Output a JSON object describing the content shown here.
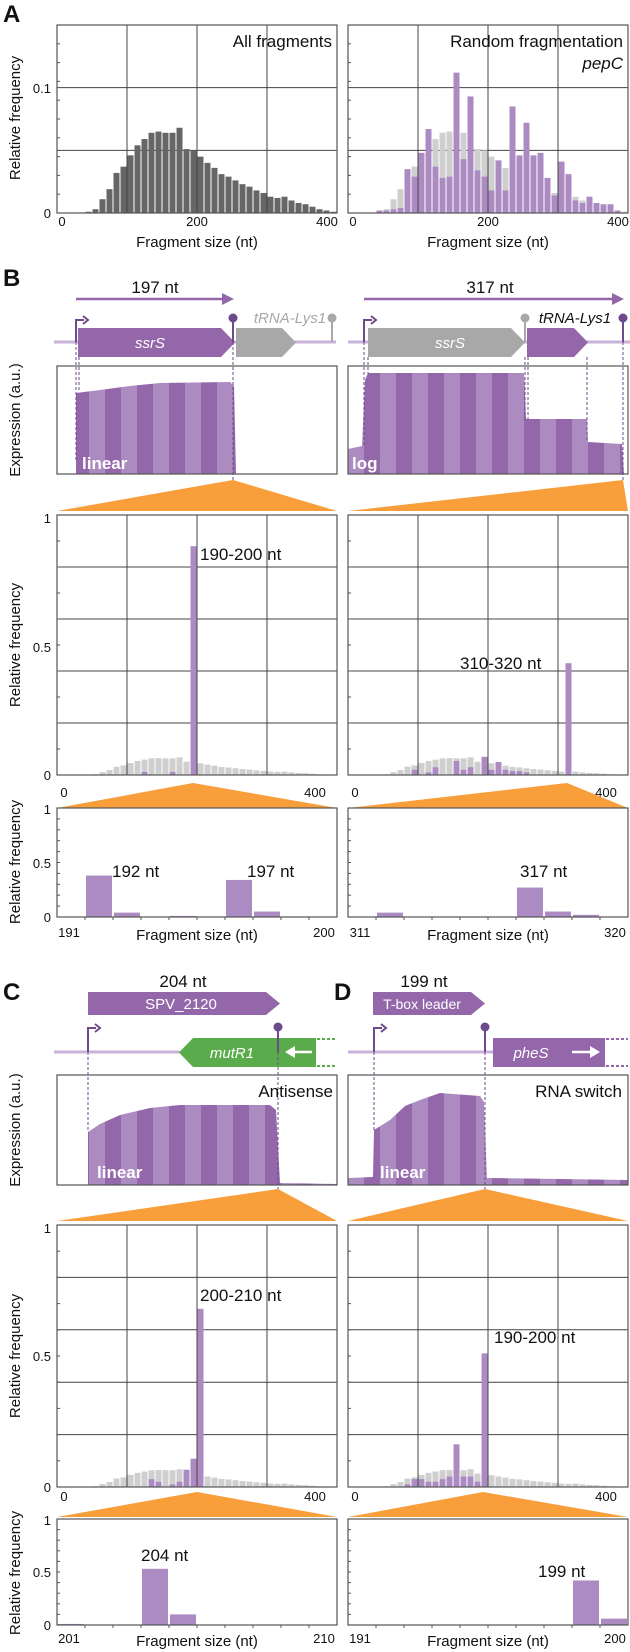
{
  "colors": {
    "purple": "#9467aa",
    "purple_light": "#ac8cc0",
    "bar_purple": "#ab8bc1",
    "gray_bar": "#cfcfcf",
    "dark_bar": "#666666",
    "orange": "#f89e3a",
    "gene_gray": "#a8a8a8",
    "green": "#5aab4b",
    "track": "#c9b2d9"
  },
  "panel_labels": {
    "A": "A",
    "B": "B",
    "C": "C",
    "D": "D"
  },
  "axis_text": {
    "relative_frequency": "Relative frequency",
    "expression": "Expression (a.u.)",
    "fragment_size": "Fragment size (nt)"
  },
  "genes": {
    "B_left": {
      "length": "197 nt",
      "gene1": "ssrS",
      "gene2": "tRNA-Lys1",
      "scale": "linear"
    },
    "B_right": {
      "length": "317 nt",
      "gene1": "ssrS",
      "gene2": "tRNA-Lys1",
      "scale": "log"
    },
    "C": {
      "length": "204 nt",
      "transcript": "SPV_2120",
      "antisense_gene": "mutR1",
      "title": "Antisense",
      "scale": "linear"
    },
    "D": {
      "length": "199 nt",
      "transcript": "T-box leader",
      "downstream_gene": "pheS",
      "title": "RNA switch",
      "scale": "linear"
    }
  },
  "chart_data": [
    {
      "id": "A_left",
      "type": "bar",
      "title": "All fragments",
      "xlabel": "Fragment size (nt)",
      "ylabel": "Relative frequency",
      "xlim": [
        0,
        400
      ],
      "ylim": [
        0,
        0.15
      ],
      "xticks": [
        "0",
        "200",
        "400"
      ],
      "yticks": [
        "0",
        "0.1"
      ],
      "bin_width": 10,
      "grid": true,
      "series": [
        {
          "name": "All fragments",
          "bin_starts_from": 0,
          "values": [
            0,
            0,
            0,
            0,
            0.001,
            0.003,
            0.011,
            0.019,
            0.032,
            0.037,
            0.046,
            0.054,
            0.059,
            0.064,
            0.065,
            0.064,
            0.064,
            0.068,
            0.051,
            0.05,
            0.045,
            0.04,
            0.036,
            0.031,
            0.029,
            0.026,
            0.023,
            0.021,
            0.018,
            0.016,
            0.013,
            0.012,
            0.013,
            0.01,
            0.008,
            0.007,
            0.005,
            0.003,
            0.002,
            0.001
          ]
        }
      ]
    },
    {
      "id": "A_right",
      "type": "bar",
      "title": "Random fragmentation",
      "subtitle": "pepC",
      "xlabel": "Fragment size (nt)",
      "xlim": [
        0,
        400
      ],
      "ylim": [
        0,
        0.15
      ],
      "xticks": [
        "0",
        "200",
        "400"
      ],
      "bin_width": 10,
      "grid": true,
      "series": [
        {
          "name": "pepC",
          "bin_starts_from": 40,
          "values": [
            0.002,
            0.002,
            0.003,
            0.004,
            0.035,
            0.029,
            0.048,
            0.067,
            0.037,
            0.028,
            0.029,
            0.112,
            0.043,
            0.093,
            0.034,
            0.029,
            0.018,
            0.042,
            0.018,
            0.085,
            0.046,
            0.072,
            0.046,
            0.048,
            0.028,
            0.014,
            0.041,
            0.031,
            0.01,
            0.008,
            0.013,
            0.008,
            0.007,
            0.007,
            0.002,
            0
          ]
        }
      ]
    },
    {
      "id": "B_left_main",
      "type": "bar",
      "xlim": [
        0,
        400
      ],
      "ylim": [
        0,
        1
      ],
      "xticks": [
        "0",
        "400"
      ],
      "yticks": [
        "0",
        "0.5",
        "1"
      ],
      "ylabel": "Relative frequency",
      "annotation": "190-200 nt",
      "series": [
        {
          "name": "ssrS",
          "bins": [
            [
              120,
              0.012
            ],
            [
              160,
              0.012
            ],
            [
              190,
              0.88
            ]
          ]
        }
      ]
    },
    {
      "id": "B_right_main",
      "type": "bar",
      "xlim": [
        0,
        400
      ],
      "ylim": [
        0,
        1
      ],
      "xticks": [
        "0",
        "400"
      ],
      "annotation": "310-320 nt",
      "series": [
        {
          "name": "ssrS-tRNA-Lys1",
          "bins": [
            [
              90,
              0.02
            ],
            [
              110,
              0.01
            ],
            [
              120,
              0.03
            ],
            [
              150,
              0.054
            ],
            [
              160,
              0.02
            ],
            [
              170,
              0.03
            ],
            [
              190,
              0.07
            ],
            [
              200,
              0.02
            ],
            [
              210,
              0.05
            ],
            [
              220,
              0.02
            ],
            [
              230,
              0.015
            ],
            [
              240,
              0.015
            ],
            [
              250,
              0.01
            ],
            [
              310,
              0.43
            ]
          ]
        }
      ]
    },
    {
      "id": "B_left_zoom",
      "type": "bar",
      "categories": [
        191,
        192,
        193,
        194,
        195,
        196,
        197,
        198,
        199,
        200
      ],
      "values": [
        0,
        0.38,
        0.04,
        0,
        0.01,
        0,
        0.34,
        0.05,
        0.005,
        0
      ],
      "ylim": [
        0,
        1
      ],
      "yticks": [
        "0",
        "0.5",
        "1"
      ],
      "xticks": [
        "191",
        "200"
      ],
      "xlabel": "Fragment size (nt)",
      "ylabel": "Relative frequency",
      "annotations": [
        "192 nt",
        "197 nt"
      ]
    },
    {
      "id": "B_right_zoom",
      "type": "bar",
      "categories": [
        311,
        312,
        313,
        314,
        315,
        316,
        317,
        318,
        319,
        320
      ],
      "values": [
        0,
        0.04,
        0,
        0,
        0.005,
        0,
        0.27,
        0.05,
        0.02,
        0
      ],
      "ylim": [
        0,
        1
      ],
      "xticks": [
        "311",
        "320"
      ],
      "xlabel": "Fragment size (nt)",
      "annotations": [
        "317 nt"
      ]
    },
    {
      "id": "C_main",
      "type": "bar",
      "xlim": [
        0,
        400
      ],
      "ylim": [
        0,
        1
      ],
      "xticks": [
        "0",
        "400"
      ],
      "yticks": [
        "0",
        "0.5",
        "1"
      ],
      "ylabel": "Relative frequency",
      "annotation": "200-210 nt",
      "series": [
        {
          "name": "SPV_2120",
          "bins": [
            [
              130,
              0.03
            ],
            [
              140,
              0.02
            ],
            [
              160,
              0.01
            ],
            [
              170,
              0.02
            ],
            [
              180,
              0.066
            ],
            [
              190,
              0.108
            ],
            [
              200,
              0.68
            ]
          ]
        }
      ]
    },
    {
      "id": "D_main",
      "type": "bar",
      "xlim": [
        0,
        400
      ],
      "ylim": [
        0,
        1
      ],
      "xticks": [
        "0",
        "400"
      ],
      "annotation": "190-200 nt",
      "series": [
        {
          "name": "T-box leader",
          "bins": [
            [
              80,
              0.01
            ],
            [
              90,
              0.03
            ],
            [
              100,
              0.03
            ],
            [
              110,
              0.02
            ],
            [
              120,
              0.02
            ],
            [
              130,
              0.03
            ],
            [
              140,
              0.04
            ],
            [
              150,
              0.163
            ],
            [
              160,
              0.04
            ],
            [
              170,
              0.04
            ],
            [
              180,
              0.02
            ],
            [
              190,
              0.51
            ]
          ]
        }
      ]
    },
    {
      "id": "C_zoom",
      "type": "bar",
      "categories": [
        201,
        202,
        203,
        204,
        205,
        206,
        207,
        208,
        209,
        210
      ],
      "values": [
        0.01,
        0.005,
        0,
        0.53,
        0.1,
        0,
        0,
        0,
        0,
        0
      ],
      "ylim": [
        0,
        1
      ],
      "yticks": [
        "0",
        "0.5",
        "1"
      ],
      "xticks": [
        "201",
        "210"
      ],
      "xlabel": "Fragment size (nt)",
      "ylabel": "Relative frequency",
      "annotations": [
        "204 nt"
      ]
    },
    {
      "id": "D_zoom",
      "type": "bar",
      "categories": [
        191,
        192,
        193,
        194,
        195,
        196,
        197,
        198,
        199,
        200
      ],
      "values": [
        0.005,
        0,
        0,
        0,
        0,
        0,
        0,
        0,
        0.42,
        0.06
      ],
      "ylim": [
        0,
        1
      ],
      "xticks": [
        "191",
        "200"
      ],
      "xlabel": "Fragment size (nt)",
      "annotations": [
        "199 nt"
      ]
    }
  ]
}
